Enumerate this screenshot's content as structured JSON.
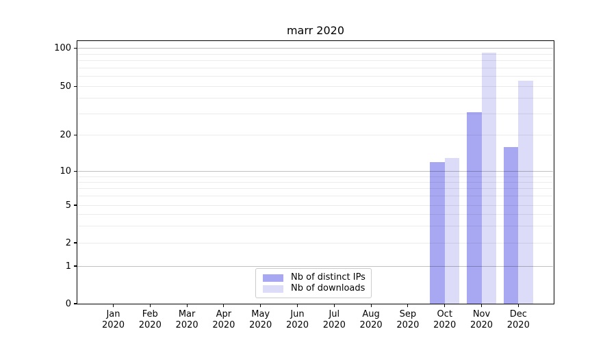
{
  "chart_data": {
    "type": "bar",
    "title": "marr 2020",
    "categories": [
      "Jan 2020",
      "Feb 2020",
      "Mar 2020",
      "Apr 2020",
      "May 2020",
      "Jun 2020",
      "Jul 2020",
      "Aug 2020",
      "Sep 2020",
      "Oct 2020",
      "Nov 2020",
      "Dec 2020"
    ],
    "series": [
      {
        "name": "Nb of distinct IPs",
        "color": "#a8a8f2",
        "values": [
          0,
          0,
          0,
          0,
          0,
          0,
          0,
          0,
          0,
          12,
          31,
          16
        ]
      },
      {
        "name": "Nb of downloads",
        "color": "#dcdcf8",
        "values": [
          0,
          0,
          0,
          0,
          0,
          0,
          0,
          0,
          0,
          13,
          92,
          56
        ]
      }
    ],
    "xlabel": "",
    "ylabel": "",
    "yscale": "quasi-log (log above 1, linear segment 0-1)",
    "ylim": [
      0,
      115
    ],
    "y_ticks": [
      0,
      1,
      2,
      5,
      10,
      20,
      50,
      100
    ],
    "y_major_gridlines": [
      1,
      10,
      100
    ],
    "y_minor_gridlines": [
      2,
      3,
      4,
      5,
      6,
      7,
      8,
      9,
      20,
      30,
      40,
      50,
      60,
      70,
      80,
      90
    ],
    "grid": "horizontal only",
    "legend": {
      "position": "lower-center"
    },
    "colors": {
      "axis": "#000000",
      "major_grid": "rgba(0,0,0,0.25)",
      "minor_grid": "rgba(0,0,0,0.08)",
      "background": "#ffffff"
    }
  }
}
